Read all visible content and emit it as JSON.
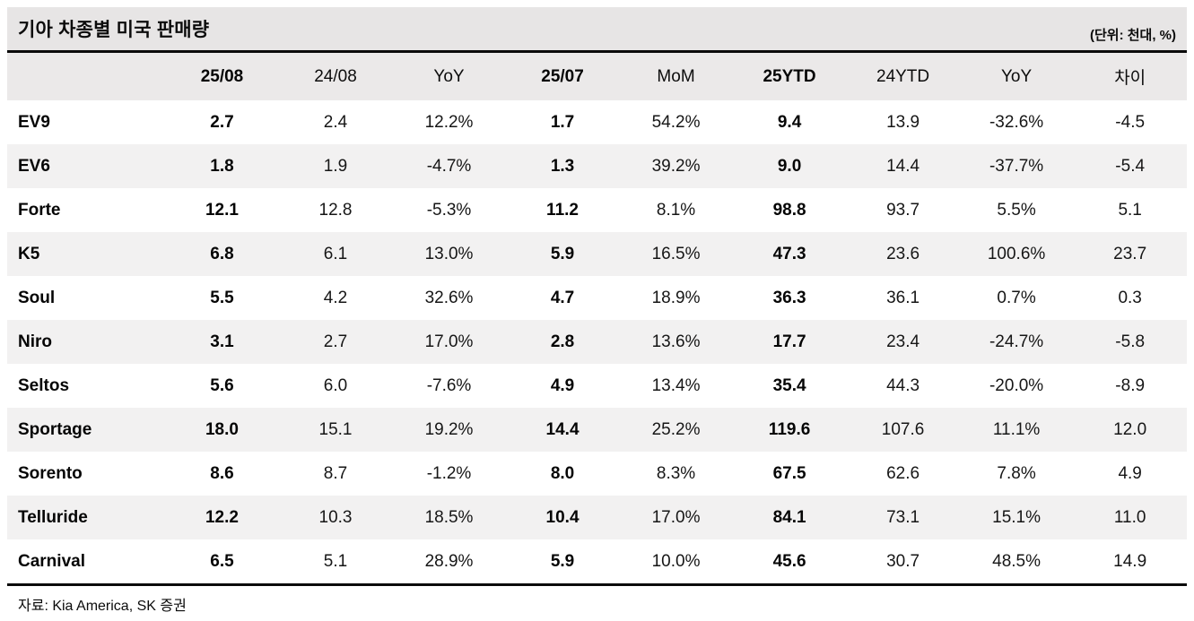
{
  "colors": {
    "title_band_bg": "#e7e5e5",
    "header_row_bg": "#ebe9e9",
    "alt_row_bg": "#f2f1f1",
    "rule": "#0b0b0b"
  },
  "chart_data": {
    "type": "table",
    "title": "기아 차종별 미국 판매량",
    "unit_note": "(단위: 천대, %)",
    "source": "자료: Kia America, SK 증권",
    "columns": [
      "",
      "25/08",
      "24/08",
      "YoY",
      "25/07",
      "MoM",
      "25YTD",
      "24YTD",
      "YoY",
      "차이"
    ],
    "bold_columns": [
      1,
      4,
      6
    ],
    "rows": [
      [
        "EV9",
        "2.7",
        "2.4",
        "12.2%",
        "1.7",
        "54.2%",
        "9.4",
        "13.9",
        "-32.6%",
        "-4.5"
      ],
      [
        "EV6",
        "1.8",
        "1.9",
        "-4.7%",
        "1.3",
        "39.2%",
        "9.0",
        "14.4",
        "-37.7%",
        "-5.4"
      ],
      [
        "Forte",
        "12.1",
        "12.8",
        "-5.3%",
        "11.2",
        "8.1%",
        "98.8",
        "93.7",
        "5.5%",
        "5.1"
      ],
      [
        "K5",
        "6.8",
        "6.1",
        "13.0%",
        "5.9",
        "16.5%",
        "47.3",
        "23.6",
        "100.6%",
        "23.7"
      ],
      [
        "Soul",
        "5.5",
        "4.2",
        "32.6%",
        "4.7",
        "18.9%",
        "36.3",
        "36.1",
        "0.7%",
        "0.3"
      ],
      [
        "Niro",
        "3.1",
        "2.7",
        "17.0%",
        "2.8",
        "13.6%",
        "17.7",
        "23.4",
        "-24.7%",
        "-5.8"
      ],
      [
        "Seltos",
        "5.6",
        "6.0",
        "-7.6%",
        "4.9",
        "13.4%",
        "35.4",
        "44.3",
        "-20.0%",
        "-8.9"
      ],
      [
        "Sportage",
        "18.0",
        "15.1",
        "19.2%",
        "14.4",
        "25.2%",
        "119.6",
        "107.6",
        "11.1%",
        "12.0"
      ],
      [
        "Sorento",
        "8.6",
        "8.7",
        "-1.2%",
        "8.0",
        "8.3%",
        "67.5",
        "62.6",
        "7.8%",
        "4.9"
      ],
      [
        "Telluride",
        "12.2",
        "10.3",
        "18.5%",
        "10.4",
        "17.0%",
        "84.1",
        "73.1",
        "15.1%",
        "11.0"
      ],
      [
        "Carnival",
        "6.5",
        "5.1",
        "28.9%",
        "5.9",
        "10.0%",
        "45.6",
        "30.7",
        "48.5%",
        "14.9"
      ]
    ]
  }
}
